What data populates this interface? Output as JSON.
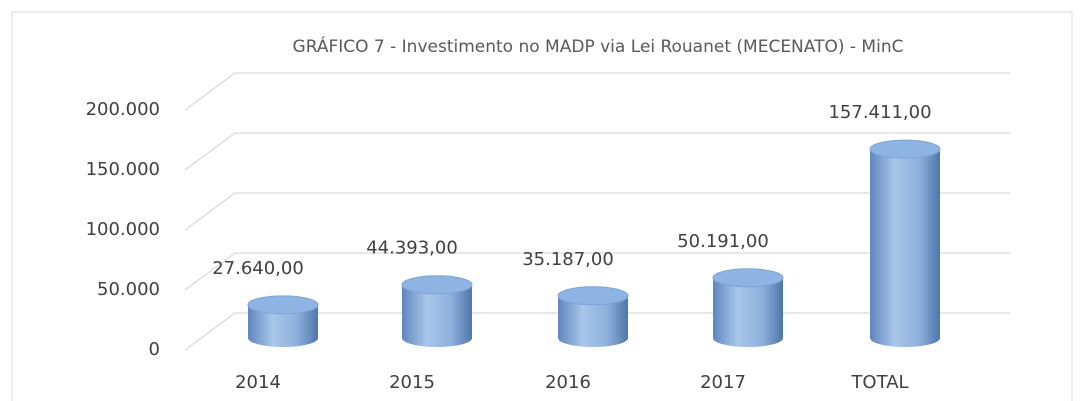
{
  "chart_data": {
    "type": "bar",
    "title": "GRÁFICO 7 - Investimento no MADP via Lei Rouanet (MECENATO) - MinC",
    "categories": [
      "2014",
      "2015",
      "2016",
      "2017",
      "TOTAL"
    ],
    "values": [
      27640,
      44393,
      35187,
      50191,
      157411
    ],
    "value_labels": [
      "27.640,00",
      "44.393,00",
      "35.187,00",
      "50.191,00",
      "157.411,00"
    ],
    "color": "#8eb4e3",
    "ylim": [
      0,
      200000
    ],
    "yticks": [
      0,
      {
        "value": 50000,
        "label": "50.000"
      },
      {
        "value": 100000,
        "label": "100.000"
      },
      {
        "value": 150000,
        "label": "150.000"
      },
      {
        "value": 200000,
        "label": "200.000"
      }
    ],
    "grid": true
  }
}
